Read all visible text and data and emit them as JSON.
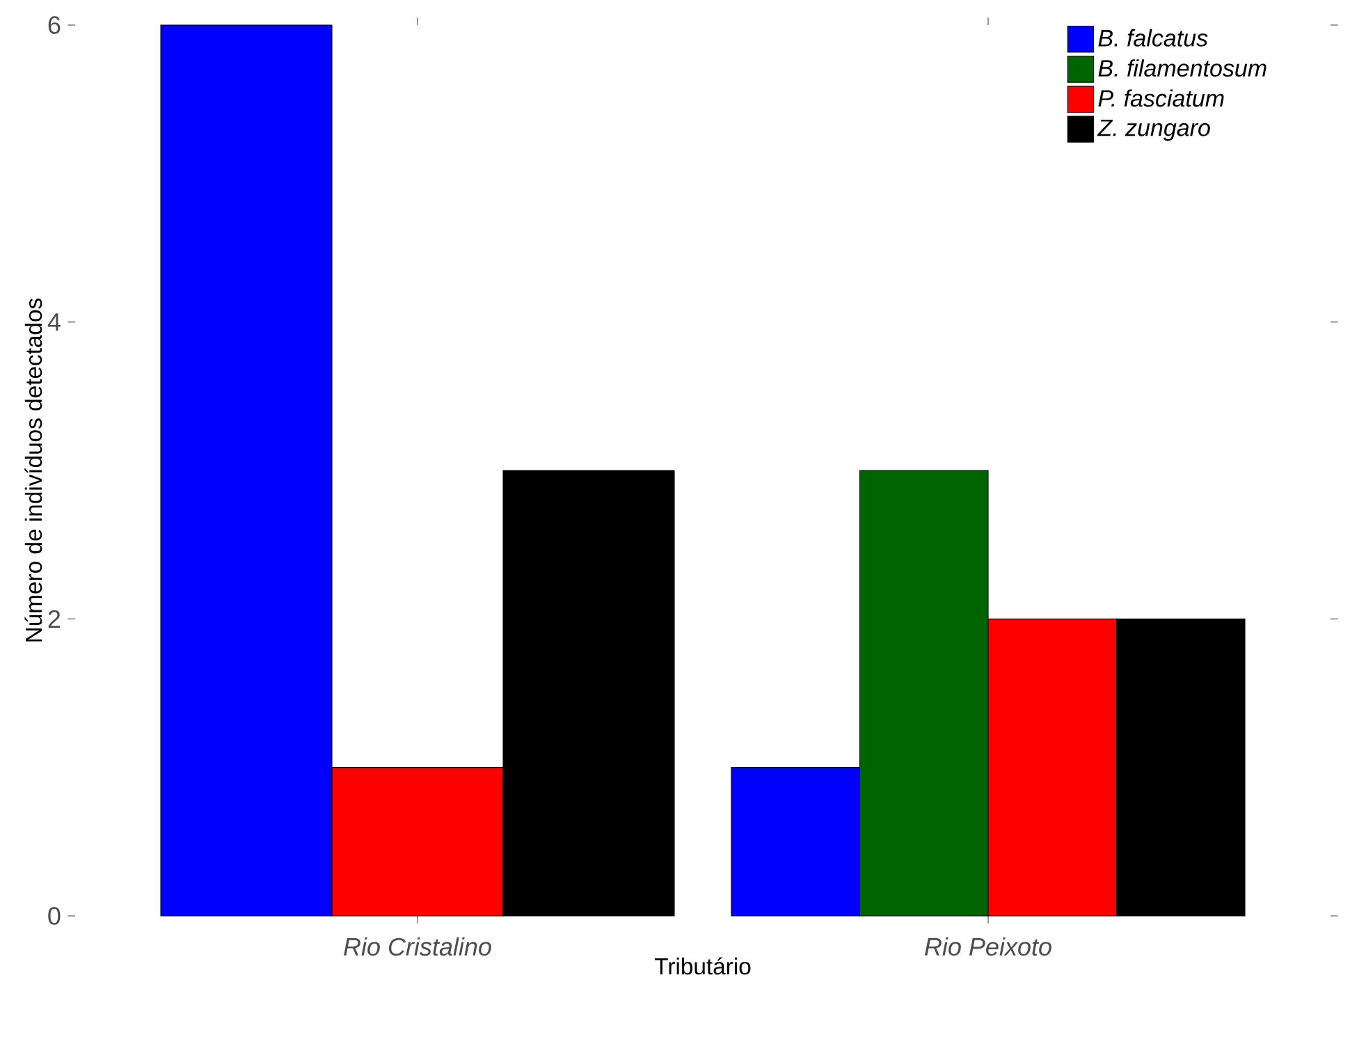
{
  "chart_data": {
    "type": "bar",
    "xlabel": "Tributário",
    "ylabel": "Número de indivíduos detectados",
    "categories": [
      "Rio Cristalino",
      "Rio Peixoto"
    ],
    "series": [
      {
        "name": "B. falcatus",
        "color": "#0000ff",
        "values": [
          6,
          1
        ]
      },
      {
        "name": "B. filamentosum",
        "color": "#006400",
        "values": [
          null,
          3
        ]
      },
      {
        "name": "P. fasciatum",
        "color": "#ff0000",
        "values": [
          1,
          2
        ]
      },
      {
        "name": "Z. zungaro",
        "color": "#000000",
        "values": [
          3,
          2
        ]
      }
    ],
    "ylim": [
      0,
      6
    ],
    "yticks": [
      0,
      2,
      4,
      6
    ],
    "legend": "top right"
  }
}
